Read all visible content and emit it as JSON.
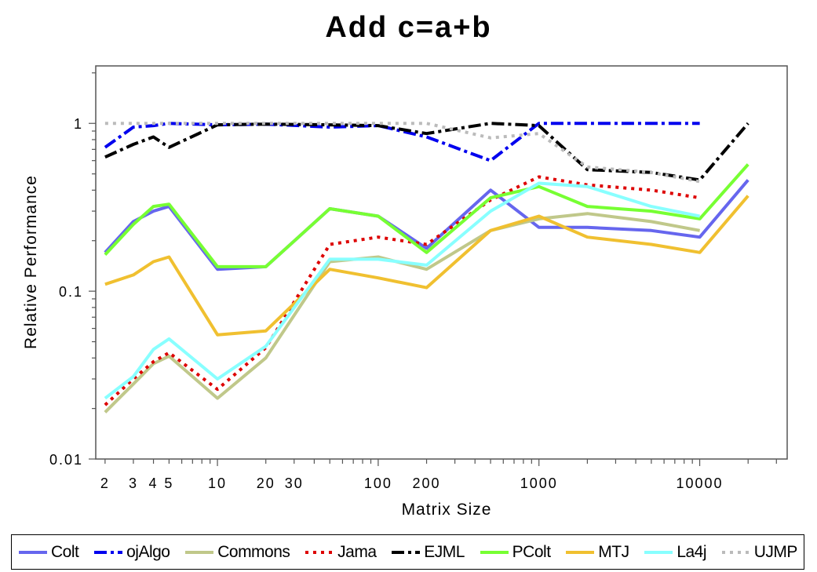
{
  "chart_data": {
    "type": "line",
    "title": "Add c=a+b",
    "xlabel": "Matrix Size",
    "ylabel": "Relative Performance",
    "x_scale": "log",
    "y_scale": "log",
    "xlim": [
      1.75,
      35000
    ],
    "ylim": [
      0.01,
      2.2
    ],
    "x_ticks": [
      {
        "value": 2,
        "label": "2"
      },
      {
        "value": 3,
        "label": "3"
      },
      {
        "value": 4,
        "label": "4"
      },
      {
        "value": 5,
        "label": "5"
      },
      {
        "value": 10,
        "label": "10"
      },
      {
        "value": 20,
        "label": "20"
      },
      {
        "value": 30,
        "label": "30"
      },
      {
        "value": 100,
        "label": "100"
      },
      {
        "value": 200,
        "label": "200"
      },
      {
        "value": 1000,
        "label": "1000"
      },
      {
        "value": 10000,
        "label": "10000"
      }
    ],
    "y_ticks": [
      {
        "value": 0.01,
        "label": "0.01"
      },
      {
        "value": 0.1,
        "label": "0.1"
      },
      {
        "value": 1,
        "label": "1"
      }
    ],
    "grid": false,
    "legend_position": "bottom",
    "x": [
      2,
      3,
      4,
      5,
      10,
      20,
      50,
      100,
      200,
      500,
      1000,
      2000,
      5000,
      10000,
      20000
    ],
    "series": [
      {
        "name": "Colt",
        "color": "#6666ee",
        "dash": "solid",
        "values": [
          0.17,
          0.26,
          0.3,
          0.32,
          0.135,
          0.14,
          0.31,
          0.28,
          0.18,
          0.4,
          0.24,
          0.24,
          0.23,
          0.21,
          0.46
        ]
      },
      {
        "name": "ojAlgo",
        "color": "#0000ee",
        "dash": "dashdot",
        "values": [
          0.72,
          0.95,
          0.97,
          1.0,
          0.98,
          0.99,
          0.95,
          0.97,
          0.83,
          0.6,
          1.0,
          1.0,
          1.0,
          1.0,
          null
        ]
      },
      {
        "name": "Commons",
        "color": "#c0c88a",
        "dash": "solid",
        "values": [
          0.019,
          0.028,
          0.037,
          0.041,
          0.023,
          0.04,
          0.15,
          0.16,
          0.135,
          0.23,
          0.27,
          0.29,
          0.26,
          0.23,
          null
        ]
      },
      {
        "name": "Jama",
        "color": "#dd0000",
        "dash": "dot",
        "values": [
          0.021,
          0.03,
          0.038,
          0.043,
          0.026,
          0.046,
          0.19,
          0.21,
          0.19,
          0.35,
          0.48,
          0.43,
          0.4,
          0.36,
          null
        ]
      },
      {
        "name": "EJML",
        "color": "#000000",
        "dash": "dashdot",
        "values": [
          0.63,
          0.75,
          0.83,
          0.72,
          0.98,
          0.99,
          0.98,
          0.97,
          0.87,
          1.0,
          0.97,
          0.53,
          0.51,
          0.46,
          1.0
        ]
      },
      {
        "name": "PColt",
        "color": "#77ff33",
        "dash": "solid",
        "values": [
          0.165,
          0.25,
          0.32,
          0.33,
          0.14,
          0.14,
          0.31,
          0.28,
          0.17,
          0.36,
          0.42,
          0.32,
          0.3,
          0.27,
          0.57
        ]
      },
      {
        "name": "MTJ",
        "color": "#f0c030",
        "dash": "solid",
        "values": [
          0.11,
          0.125,
          0.15,
          0.16,
          0.055,
          0.058,
          0.135,
          0.12,
          0.105,
          0.23,
          0.28,
          0.21,
          0.19,
          0.17,
          0.37
        ]
      },
      {
        "name": "La4j",
        "color": "#88ffff",
        "dash": "solid",
        "values": [
          0.023,
          0.031,
          0.045,
          0.052,
          0.03,
          0.047,
          0.155,
          0.155,
          0.143,
          0.3,
          0.44,
          0.42,
          0.32,
          0.28,
          null
        ]
      },
      {
        "name": "UJMP",
        "color": "#bbbbbb",
        "dash": "dot",
        "values": [
          1.0,
          1.0,
          1.0,
          1.0,
          1.0,
          1.0,
          1.0,
          1.0,
          1.0,
          0.82,
          0.87,
          0.55,
          0.51,
          0.45,
          null
        ]
      }
    ]
  }
}
